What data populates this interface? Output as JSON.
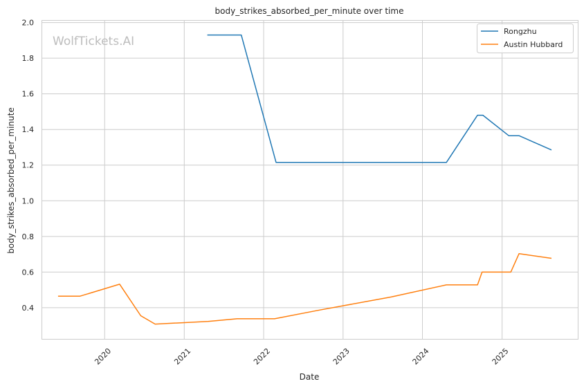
{
  "chart_data": {
    "type": "line",
    "title": "body_strikes_absorbed_per_minute over time",
    "xlabel": "Date",
    "ylabel": "body_strikes_absorbed_per_minute",
    "watermark": "WolfTickets.AI",
    "x_ticks": [
      "2020",
      "2021",
      "2022",
      "2023",
      "2024",
      "2025"
    ],
    "y_ticks": [
      "0.4",
      "0.6",
      "0.8",
      "1.0",
      "1.2",
      "1.4",
      "1.6",
      "1.8",
      "2.0"
    ],
    "xlim": [
      "2019-03-20",
      "2025-12-15"
    ],
    "ylim": [
      0.225,
      2.01
    ],
    "grid": true,
    "legend_position": "top-right",
    "series": [
      {
        "name": "Rongzhu",
        "color": "#1f77b4",
        "points": [
          [
            "2021-04-17",
            1.93
          ],
          [
            "2021-09-20",
            1.93
          ],
          [
            "2022-02-27",
            1.215
          ],
          [
            "2024-04-20",
            1.215
          ],
          [
            "2024-09-10",
            1.48
          ],
          [
            "2024-10-05",
            1.48
          ],
          [
            "2025-02-01",
            1.365
          ],
          [
            "2025-03-20",
            1.365
          ],
          [
            "2025-08-16",
            1.285
          ]
        ]
      },
      {
        "name": "Austin Hubbard",
        "color": "#ff7f0e",
        "points": [
          [
            "2019-06-01",
            0.465
          ],
          [
            "2019-09-10",
            0.465
          ],
          [
            "2020-03-10",
            0.532
          ],
          [
            "2020-06-15",
            0.355
          ],
          [
            "2020-08-20",
            0.308
          ],
          [
            "2021-04-20",
            0.323
          ],
          [
            "2021-09-01",
            0.338
          ],
          [
            "2022-02-20",
            0.338
          ],
          [
            "2022-09-15",
            0.387
          ],
          [
            "2023-08-10",
            0.46
          ],
          [
            "2024-04-20",
            0.528
          ],
          [
            "2024-09-10",
            0.528
          ],
          [
            "2024-10-01",
            0.6
          ],
          [
            "2025-02-10",
            0.6
          ],
          [
            "2025-03-20",
            0.703
          ],
          [
            "2025-08-16",
            0.677
          ]
        ]
      }
    ]
  }
}
